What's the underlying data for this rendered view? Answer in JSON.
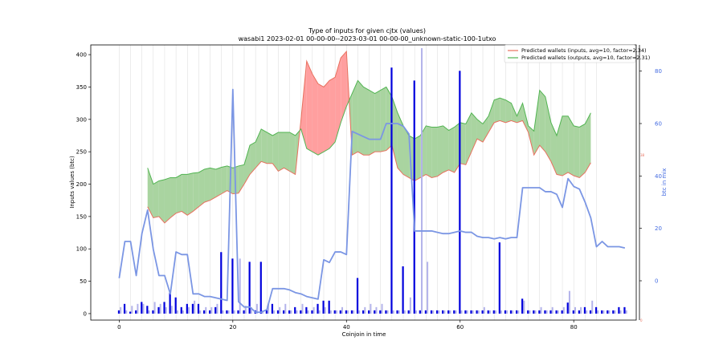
{
  "chart_data": {
    "type": "line",
    "title": "Type of inputs for given cjtx (values)",
    "subtitle": "wasabi1 2023-02-01 00-00-00--2023-03-01 00-00-00_unknown-static-100-1utxo",
    "xlabel": "Coinjoin in time",
    "ylabel": "Inputs values (btc)",
    "ylabel_right": "btc in mix",
    "xlim": [
      -5,
      91
    ],
    "ylim": [
      -10,
      415
    ],
    "ylim_right": [
      -15,
      90
    ],
    "x_ticks": [
      0,
      20,
      40,
      60,
      80
    ],
    "y_ticks": [
      0,
      50,
      100,
      150,
      200,
      250,
      300,
      350,
      400
    ],
    "y_ticks_right": [
      0,
      20,
      40,
      60,
      80
    ],
    "right_axis_markers": [
      {
        "value": 48,
        "label": "38"
      },
      {
        "value": -15,
        "label": "0"
      }
    ],
    "gridlines_x": [
      0,
      2,
      4,
      6,
      8,
      10,
      12,
      14,
      16,
      18,
      20,
      22,
      24,
      26,
      28,
      30,
      32,
      34,
      36,
      38,
      40,
      42,
      44,
      46,
      48,
      50,
      52,
      54,
      56,
      58,
      60,
      62,
      64,
      66,
      68,
      70,
      72,
      74,
      76,
      78,
      80,
      82,
      84
    ],
    "legend": {
      "position": "top-right",
      "entries": [
        {
          "label": "Predicted wallets (inputs, avg=10, factor=2.34)",
          "color": "#e8705e"
        },
        {
          "label": "Predicted wallets (outputs, avg=10, factor=2.31)",
          "color": "#52b452"
        }
      ]
    },
    "band": {
      "x": [
        5,
        6,
        7,
        8,
        9,
        10,
        11,
        12,
        13,
        14,
        15,
        16,
        17,
        18,
        19,
        20,
        21,
        22,
        23,
        24,
        25,
        26,
        27,
        28,
        29,
        30,
        31,
        32,
        33,
        34,
        35,
        36,
        37,
        38,
        39,
        40,
        41,
        42,
        43,
        44,
        45,
        46,
        47,
        48,
        49,
        50,
        51,
        52,
        53,
        54,
        55,
        56,
        57,
        58,
        59,
        60,
        61,
        62,
        63,
        64,
        65,
        66,
        67,
        68,
        69,
        70,
        71,
        72,
        73,
        74,
        75,
        76,
        77,
        78,
        79,
        80,
        81,
        82,
        83
      ],
      "inputs": [
        165,
        148,
        150,
        140,
        148,
        155,
        158,
        152,
        158,
        165,
        172,
        175,
        180,
        185,
        190,
        185,
        186,
        200,
        215,
        225,
        235,
        232,
        232,
        220,
        225,
        220,
        215,
        300,
        390,
        370,
        355,
        350,
        360,
        365,
        395,
        405,
        245,
        250,
        245,
        245,
        250,
        250,
        252,
        260,
        225,
        215,
        210,
        205,
        210,
        215,
        210,
        212,
        218,
        222,
        218,
        232,
        230,
        250,
        270,
        265,
        280,
        295,
        298,
        295,
        298,
        295,
        298,
        280,
        245,
        260,
        250,
        235,
        215,
        213,
        218,
        213,
        210,
        218,
        233
      ],
      "outputs": [
        225,
        200,
        205,
        207,
        210,
        210,
        215,
        215,
        217,
        218,
        223,
        225,
        223,
        226,
        228,
        225,
        228,
        230,
        260,
        265,
        285,
        280,
        275,
        280,
        280,
        280,
        275,
        285,
        255,
        250,
        245,
        250,
        255,
        265,
        295,
        320,
        340,
        360,
        350,
        345,
        340,
        345,
        350,
        335,
        310,
        290,
        275,
        270,
        275,
        290,
        288,
        288,
        290,
        283,
        288,
        295,
        293,
        310,
        300,
        293,
        305,
        330,
        333,
        330,
        325,
        305,
        325,
        290,
        282,
        345,
        335,
        295,
        275,
        305,
        305,
        290,
        288,
        293,
        310
      ]
    },
    "mix_line": {
      "x": [
        0,
        1,
        2,
        3,
        4,
        5,
        6,
        7,
        8,
        9,
        10,
        11,
        12,
        13,
        14,
        15,
        16,
        17,
        18,
        19,
        20,
        21,
        22,
        23,
        24,
        25,
        26,
        27,
        28,
        29,
        30,
        31,
        32,
        33,
        34,
        35,
        36,
        37,
        38,
        39,
        40,
        41,
        42,
        43,
        44,
        45,
        46,
        47,
        48,
        49,
        50,
        51,
        52,
        53,
        54,
        55,
        56,
        57,
        58,
        59,
        60,
        61,
        62,
        63,
        64,
        65,
        66,
        67,
        68,
        69,
        70,
        71,
        72,
        73,
        74,
        75,
        76,
        77,
        78,
        79,
        80,
        81,
        82,
        83,
        84,
        85,
        86,
        87,
        88,
        89
      ],
      "values": [
        1,
        15,
        15,
        2,
        18,
        27,
        12,
        2,
        2,
        -5,
        11,
        10,
        10,
        -5,
        -5,
        -6,
        -6,
        -6.5,
        -7,
        -7.5,
        73,
        -8,
        -10,
        -10,
        -12,
        -12,
        -11,
        -3,
        -3,
        -3,
        -3.5,
        -4.5,
        -5,
        -6,
        -6.5,
        -7,
        8,
        7,
        11,
        11,
        10,
        57,
        56,
        55,
        54,
        54,
        54,
        60,
        60,
        60,
        59,
        56,
        19,
        19,
        19,
        19,
        18.5,
        18,
        18,
        18.5,
        19,
        18.5,
        18.5,
        17,
        16.5,
        16.5,
        16,
        16.5,
        16,
        16.5,
        16.5,
        35.5,
        35.5,
        35.5,
        35.5,
        34,
        34,
        33,
        28,
        39,
        36,
        35,
        30,
        24,
        13,
        15,
        13,
        13,
        13,
        12.5
      ]
    },
    "input_bars": {
      "x": [
        0,
        1,
        2,
        3,
        4,
        5,
        6,
        7,
        8,
        9,
        10,
        11,
        12,
        13,
        14,
        15,
        16,
        17,
        18,
        19,
        20,
        21,
        22,
        23,
        24,
        25,
        26,
        27,
        28,
        29,
        30,
        31,
        32,
        33,
        34,
        35,
        36,
        37,
        38,
        39,
        40,
        41,
        42,
        43,
        44,
        45,
        46,
        47,
        48,
        49,
        50,
        51,
        52,
        53,
        54,
        55,
        56,
        57,
        58,
        59,
        60,
        61,
        62,
        63,
        64,
        65,
        66,
        67,
        68,
        69,
        70,
        71,
        72,
        73,
        74,
        75,
        76,
        77,
        78,
        79,
        80,
        81,
        82,
        83,
        84,
        85,
        86,
        87,
        88,
        89
      ],
      "dark": [
        5,
        15,
        3,
        5,
        18,
        12,
        5,
        10,
        18,
        33,
        25,
        10,
        15,
        15,
        15,
        5,
        5,
        10,
        95,
        5,
        85,
        5,
        5,
        80,
        5,
        80,
        5,
        15,
        5,
        5,
        5,
        10,
        5,
        10,
        5,
        15,
        20,
        20,
        5,
        5,
        5,
        5,
        55,
        5,
        5,
        5,
        5,
        5,
        380,
        5,
        73,
        5,
        360,
        5,
        5,
        5,
        5,
        5,
        5,
        5,
        375,
        5,
        5,
        5,
        5,
        5,
        5,
        110,
        5,
        5,
        5,
        23,
        5,
        5,
        5,
        5,
        5,
        5,
        5,
        17,
        5,
        5,
        10,
        5,
        10,
        5,
        5,
        5,
        10,
        10
      ],
      "light": [
        10,
        5,
        12,
        15,
        15,
        5,
        18,
        15,
        10,
        12,
        5,
        5,
        10,
        20,
        5,
        10,
        10,
        15,
        5,
        5,
        5,
        85,
        12,
        10,
        15,
        5,
        15,
        5,
        10,
        15,
        5,
        5,
        15,
        5,
        10,
        5,
        10,
        5,
        5,
        10,
        5,
        5,
        5,
        10,
        15,
        10,
        15,
        5,
        5,
        5,
        5,
        25,
        5,
        410,
        80,
        5,
        5,
        5,
        5,
        5,
        5,
        5,
        5,
        5,
        10,
        5,
        5,
        5,
        5,
        5,
        5,
        20,
        5,
        5,
        10,
        5,
        10,
        5,
        10,
        35,
        10,
        10,
        5,
        20,
        5,
        5,
        5,
        5,
        5,
        5
      ]
    }
  }
}
